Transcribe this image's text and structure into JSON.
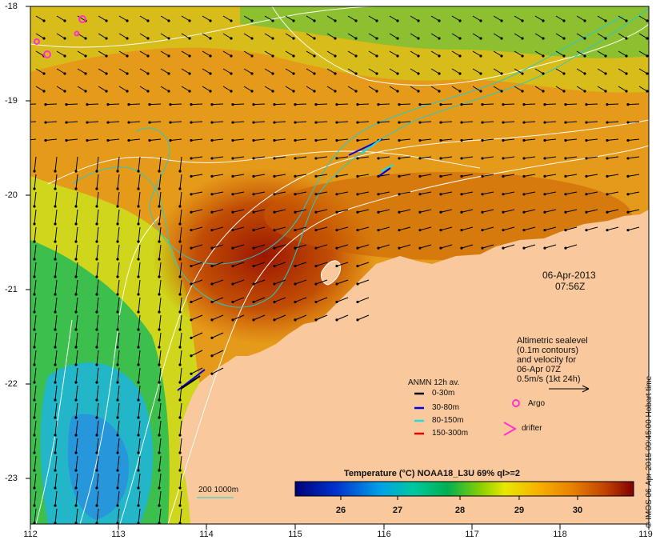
{
  "map": {
    "lon_ticks": [
      "112",
      "113",
      "114",
      "115",
      "116",
      "117",
      "118",
      "119"
    ],
    "lat_ticks": [
      "-18",
      "-19",
      "-20",
      "-21",
      "-22",
      "-23"
    ],
    "date": "06-Apr-2013",
    "time": "07:56Z",
    "altimetry_title": "Altimetric sealevel",
    "altimetry_line2": "(0.1m contours)",
    "altimetry_line3": "and velocity for",
    "altimetry_line4": "06-Apr 07Z",
    "altimetry_scale": "0.5m/s (1kt 24h)",
    "anmn_title": "ANMN 12h av.",
    "anmn_depths": [
      {
        "label": "0-30m",
        "color": "#000000"
      },
      {
        "label": "30-80m",
        "color": "#0000dd"
      },
      {
        "label": "80-150m",
        "color": "#22dddd"
      },
      {
        "label": "150-300m",
        "color": "#ee0000"
      }
    ],
    "argo_label": "Argo",
    "drifter_label": "drifter",
    "isobath_label": "200  1000m",
    "colorbar_title": "Temperature (°C) NOAA18_L3U 69% ql>=2",
    "colorbar_ticks": [
      "26",
      "27",
      "28",
      "29",
      "30"
    ],
    "credit": "© IMOS 06-Apr-2015 09:45:00 Hobart time",
    "colors": {
      "land": "#f9c89d",
      "argo": "#ff33cc",
      "isobath": "#22cccc",
      "contour": "#ffffff"
    }
  }
}
